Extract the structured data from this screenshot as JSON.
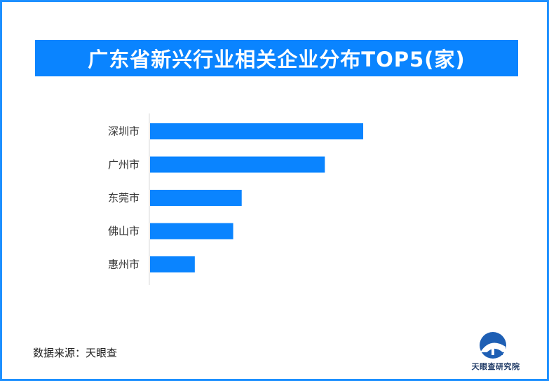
{
  "title": "广东省新兴行业相关企业分布TOP5(家)",
  "source": "数据来源：天眼查",
  "logo": {
    "text": "天眼查研究院"
  },
  "colors": {
    "bar": "#0a84ff",
    "title_bg": "#0a84ff",
    "border": "#1e90ff"
  },
  "chart_data": {
    "type": "bar",
    "orientation": "horizontal",
    "categories": [
      "深圳市",
      "广州市",
      "东莞市",
      "佛山市",
      "惠州市"
    ],
    "values": [
      100,
      82,
      43,
      39,
      21
    ],
    "title": "广东省新兴行业相关企业分布TOP5(家)",
    "xlabel": "",
    "ylabel": "",
    "xlim": [
      0,
      100
    ],
    "grid": false,
    "legend": "none",
    "data_labels": false
  }
}
